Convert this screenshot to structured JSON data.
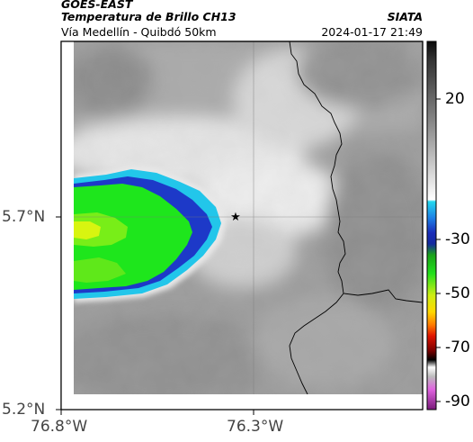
{
  "header": {
    "satellite": "GOES-EAST",
    "product": "Temperatura de Brillo CH13",
    "location": "Vía Medellín - Quibdó 50km",
    "agency": "SIATA",
    "datetime": "2024-01-17 21:49"
  },
  "map": {
    "lat_ticks": [
      "5.7°N",
      "5.2°N"
    ],
    "lon_ticks": [
      "76.8°W",
      "76.3°W"
    ],
    "marker_symbol": "★",
    "marker_label": ""
  },
  "colorbar": {
    "ticks": [
      "20",
      "-30",
      "-50",
      "-70",
      "-90"
    ],
    "units": ""
  },
  "colors": {
    "cold_cloud_core": "#19e61a",
    "cold_cloud_mid": "#b9f40c",
    "cold_cloud_ring": "#1d39c8",
    "cold_cloud_edge": "#1fc4e8",
    "grid": "#8a8a8a",
    "coast": "#000000"
  },
  "icons": {
    "marker": "star-marker-icon"
  }
}
